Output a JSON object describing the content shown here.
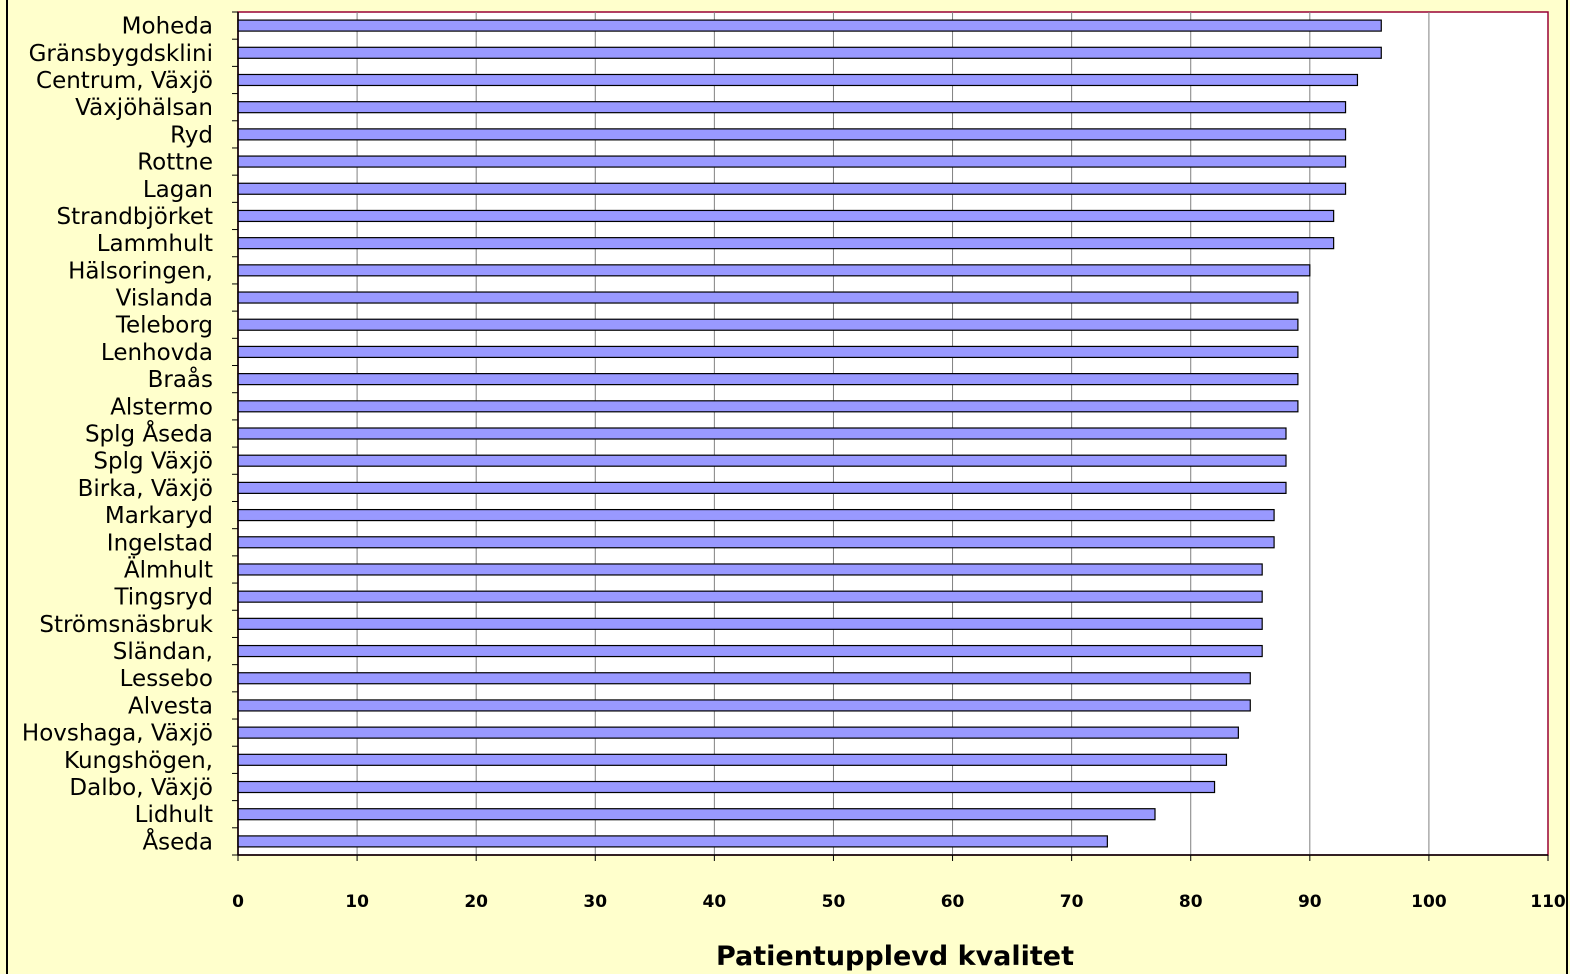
{
  "chart_data": {
    "type": "bar",
    "orientation": "horizontal",
    "xlabel": "Patientupplevd kvalitet",
    "xlim": [
      0,
      110
    ],
    "x_ticks": [
      0,
      10,
      20,
      30,
      40,
      50,
      60,
      70,
      80,
      90,
      100,
      110
    ],
    "grid": "vertical major gridlines",
    "categories": [
      "Moheda",
      "Gränsbygdsklini",
      "Centrum, Växjö",
      "Växjöhälsan",
      "Ryd",
      "Rottne",
      "Lagan",
      "Strandbjörket",
      "Lammhult",
      "Hälsoringen,",
      "Vislanda",
      "Teleborg",
      "Lenhovda",
      "Braås",
      "Alstermo",
      "Splg Åseda",
      "Splg Växjö",
      "Birka, Växjö",
      "Markaryd",
      "Ingelstad",
      "Älmhult",
      "Tingsryd",
      "Strömsnäsbruk",
      "Sländan,",
      "Lessebo",
      "Alvesta",
      "Hovshaga, Växjö",
      "Kungshögen,",
      "Dalbo, Växjö",
      "Lidhult",
      "Åseda"
    ],
    "values": [
      96,
      96,
      94,
      93,
      93,
      93,
      93,
      92,
      92,
      90,
      89,
      89,
      89,
      89,
      89,
      88,
      88,
      88,
      87,
      87,
      86,
      86,
      86,
      86,
      85,
      85,
      84,
      83,
      82,
      77,
      73
    ],
    "colors": {
      "bar_fill": "#9999FF",
      "bar_stroke": "#000000",
      "plot_background": "#FFFFFF",
      "page_background": "#FFFFCC",
      "plot_border": "#990033",
      "gridline": "#808080"
    }
  }
}
